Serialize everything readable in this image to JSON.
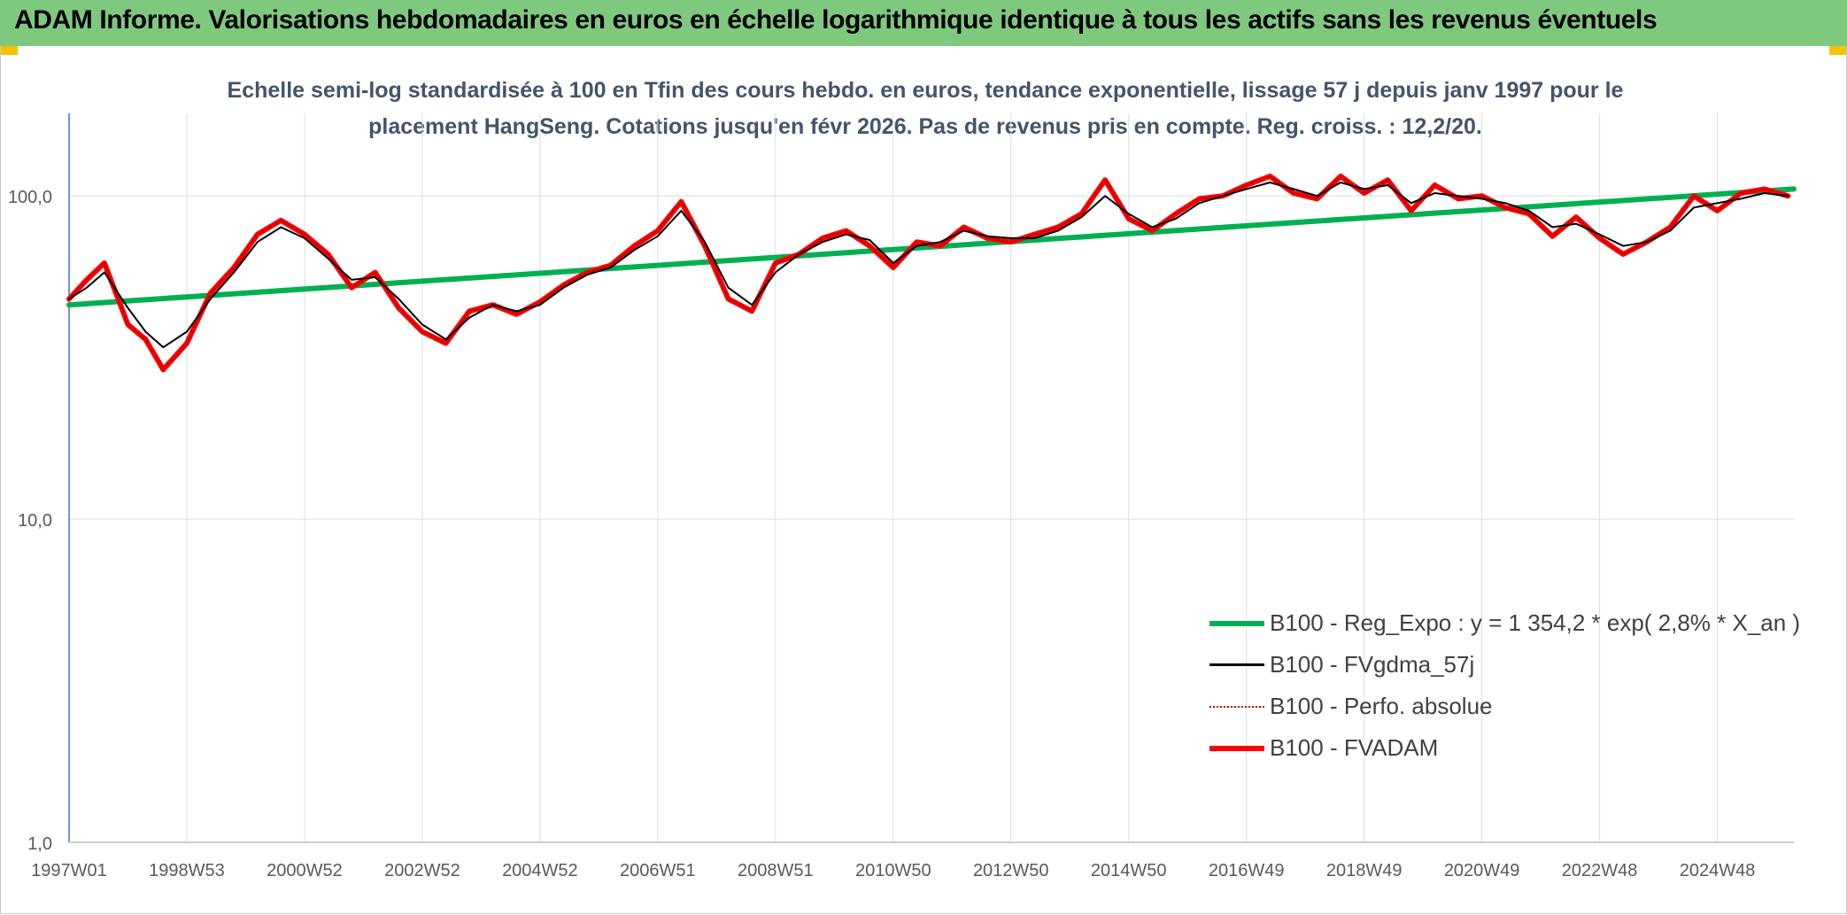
{
  "banner": {
    "title": "ADAM Informe. Valorisations hebdomadaires en euros en échelle logarithmique identique à tous les actifs sans les revenus éventuels"
  },
  "chart_data": {
    "type": "line",
    "title": "Echelle semi-log standardisée à 100 en Tfin des cours hebdo. en euros, tendance exponentielle, lissage 57 j depuis janv 1997 pour le placement HangSeng. Cotations jusqu'en févr 2026. Pas de revenus pris en compte. Reg. croiss. : 12,2/20.",
    "title_lines": [
      "Echelle semi-log standardisée à 100 en Tfin des cours hebdo. en euros, tendance exponentielle, lissage 57 j depuis janv 1997 pour le",
      "placement HangSeng. Cotations jusqu'en févr 2026. Pas de revenus pris en compte. Reg. croiss. : 12,2/20."
    ],
    "y_scale": "log",
    "ylim": [
      1,
      180
    ],
    "xlim": [
      1997.0,
      2026.3
    ],
    "y_ticks": [
      "1,0",
      "10,0",
      "100,0"
    ],
    "y_tick_values": [
      1,
      10,
      100
    ],
    "x_ticks": [
      "1997W01",
      "1998W53",
      "2000W52",
      "2002W52",
      "2004W52",
      "2006W51",
      "2008W51",
      "2010W50",
      "2012W50",
      "2014W50",
      "2016W49",
      "2018W49",
      "2020W49",
      "2022W48",
      "2024W48"
    ],
    "x_tick_values": [
      1997.0,
      1999.0,
      2001.0,
      2003.0,
      2005.0,
      2007.0,
      2009.0,
      2011.0,
      2013.0,
      2015.0,
      2017.0,
      2019.0,
      2021.0,
      2023.0,
      2025.0
    ],
    "grid": true,
    "legend_position": "bottom-right",
    "series": [
      {
        "name": "B100 - Reg_Expo : y = 1 354,2 * exp( 2,8% *  X_an )",
        "color": "#00b050",
        "style": "solid-thick",
        "x": [
          1997.0,
          2026.3
        ],
        "y": [
          46,
          105
        ]
      },
      {
        "name": "B100 - FVgdma_57j",
        "color": "#000000",
        "style": "solid-thin",
        "x": [
          1997.0,
          1997.3,
          1997.6,
          1998.0,
          1998.3,
          1998.6,
          1999.0,
          1999.4,
          1999.8,
          2000.2,
          2000.6,
          2001.0,
          2001.4,
          2001.8,
          2002.2,
          2002.6,
          2003.0,
          2003.4,
          2003.8,
          2004.2,
          2004.6,
          2005.0,
          2005.4,
          2005.8,
          2006.2,
          2006.6,
          2007.0,
          2007.4,
          2007.8,
          2008.2,
          2008.6,
          2009.0,
          2009.4,
          2009.8,
          2010.2,
          2010.6,
          2011.0,
          2011.4,
          2011.8,
          2012.2,
          2012.6,
          2013.0,
          2013.4,
          2013.8,
          2014.2,
          2014.6,
          2015.0,
          2015.4,
          2015.8,
          2016.2,
          2016.6,
          2017.0,
          2017.4,
          2017.8,
          2018.2,
          2018.6,
          2019.0,
          2019.4,
          2019.8,
          2020.2,
          2020.6,
          2021.0,
          2021.4,
          2021.8,
          2022.2,
          2022.6,
          2023.0,
          2023.4,
          2023.8,
          2024.2,
          2024.6,
          2025.0,
          2025.4,
          2025.8,
          2026.2
        ],
        "y": [
          48,
          52,
          58,
          45,
          38,
          34,
          38,
          48,
          58,
          72,
          80,
          74,
          64,
          55,
          56,
          48,
          40,
          36,
          42,
          46,
          44,
          46,
          52,
          57,
          60,
          68,
          75,
          90,
          72,
          52,
          46,
          58,
          66,
          72,
          76,
          73,
          62,
          70,
          72,
          78,
          75,
          74,
          74,
          78,
          86,
          100,
          88,
          80,
          85,
          95,
          100,
          105,
          110,
          105,
          100,
          110,
          105,
          108,
          95,
          102,
          100,
          98,
          95,
          90,
          80,
          82,
          76,
          70,
          72,
          78,
          92,
          95,
          98,
          102,
          100
        ]
      },
      {
        "name": "B100 - Perfo. absolue",
        "color": "#c00000",
        "style": "dotted",
        "x": [
          1997.0,
          1997.3,
          1997.6,
          1998.0,
          1998.3,
          1998.6,
          1999.0,
          1999.4,
          1999.8,
          2000.2,
          2000.6,
          2001.0,
          2001.4,
          2001.8,
          2002.2,
          2002.6,
          2003.0,
          2003.4,
          2003.8,
          2004.2,
          2004.6,
          2005.0,
          2005.4,
          2005.8,
          2006.2,
          2006.6,
          2007.0,
          2007.4,
          2007.8,
          2008.2,
          2008.6,
          2009.0,
          2009.4,
          2009.8,
          2010.2,
          2010.6,
          2011.0,
          2011.4,
          2011.8,
          2012.2,
          2012.6,
          2013.0,
          2013.4,
          2013.8,
          2014.2,
          2014.6,
          2015.0,
          2015.4,
          2015.8,
          2016.2,
          2016.6,
          2017.0,
          2017.4,
          2017.8,
          2018.2,
          2018.6,
          2019.0,
          2019.4,
          2019.8,
          2020.2,
          2020.6,
          2021.0,
          2021.4,
          2021.8,
          2022.2,
          2022.6,
          2023.0,
          2023.4,
          2023.8,
          2024.2,
          2024.6,
          2025.0,
          2025.4,
          2025.8,
          2026.2
        ],
        "y": [
          48,
          55,
          62,
          40,
          36,
          29,
          35,
          50,
          60,
          76,
          84,
          76,
          66,
          52,
          58,
          45,
          38,
          35,
          44,
          46,
          43,
          47,
          53,
          58,
          61,
          70,
          78,
          96,
          70,
          48,
          44,
          62,
          66,
          74,
          78,
          70,
          60,
          72,
          70,
          80,
          74,
          72,
          76,
          80,
          88,
          112,
          85,
          78,
          88,
          98,
          100,
          108,
          115,
          102,
          98,
          115,
          102,
          112,
          90,
          108,
          98,
          100,
          92,
          88,
          75,
          86,
          74,
          66,
          72,
          80,
          100,
          90,
          102,
          105,
          100
        ]
      },
      {
        "name": "B100 - FVADAM",
        "color": "#ff0000",
        "style": "solid-thick",
        "x": [
          1997.0,
          1997.3,
          1997.6,
          1998.0,
          1998.3,
          1998.6,
          1999.0,
          1999.4,
          1999.8,
          2000.2,
          2000.6,
          2001.0,
          2001.4,
          2001.8,
          2002.2,
          2002.6,
          2003.0,
          2003.4,
          2003.8,
          2004.2,
          2004.6,
          2005.0,
          2005.4,
          2005.8,
          2006.2,
          2006.6,
          2007.0,
          2007.4,
          2007.8,
          2008.2,
          2008.6,
          2009.0,
          2009.4,
          2009.8,
          2010.2,
          2010.6,
          2011.0,
          2011.4,
          2011.8,
          2012.2,
          2012.6,
          2013.0,
          2013.4,
          2013.8,
          2014.2,
          2014.6,
          2015.0,
          2015.4,
          2015.8,
          2016.2,
          2016.6,
          2017.0,
          2017.4,
          2017.8,
          2018.2,
          2018.6,
          2019.0,
          2019.4,
          2019.8,
          2020.2,
          2020.6,
          2021.0,
          2021.4,
          2021.8,
          2022.2,
          2022.6,
          2023.0,
          2023.4,
          2023.8,
          2024.2,
          2024.6,
          2025.0,
          2025.4,
          2025.8,
          2026.2
        ],
        "y": [
          48,
          55,
          62,
          40,
          36,
          29,
          35,
          50,
          60,
          76,
          84,
          76,
          66,
          52,
          58,
          45,
          38,
          35,
          44,
          46,
          43,
          47,
          53,
          58,
          61,
          70,
          78,
          96,
          70,
          48,
          44,
          62,
          66,
          74,
          78,
          70,
          60,
          72,
          70,
          80,
          74,
          72,
          76,
          80,
          88,
          112,
          85,
          78,
          88,
          98,
          100,
          108,
          115,
          102,
          98,
          115,
          102,
          112,
          90,
          108,
          98,
          100,
          92,
          88,
          75,
          86,
          74,
          66,
          72,
          80,
          100,
          90,
          102,
          105,
          100
        ]
      }
    ]
  }
}
